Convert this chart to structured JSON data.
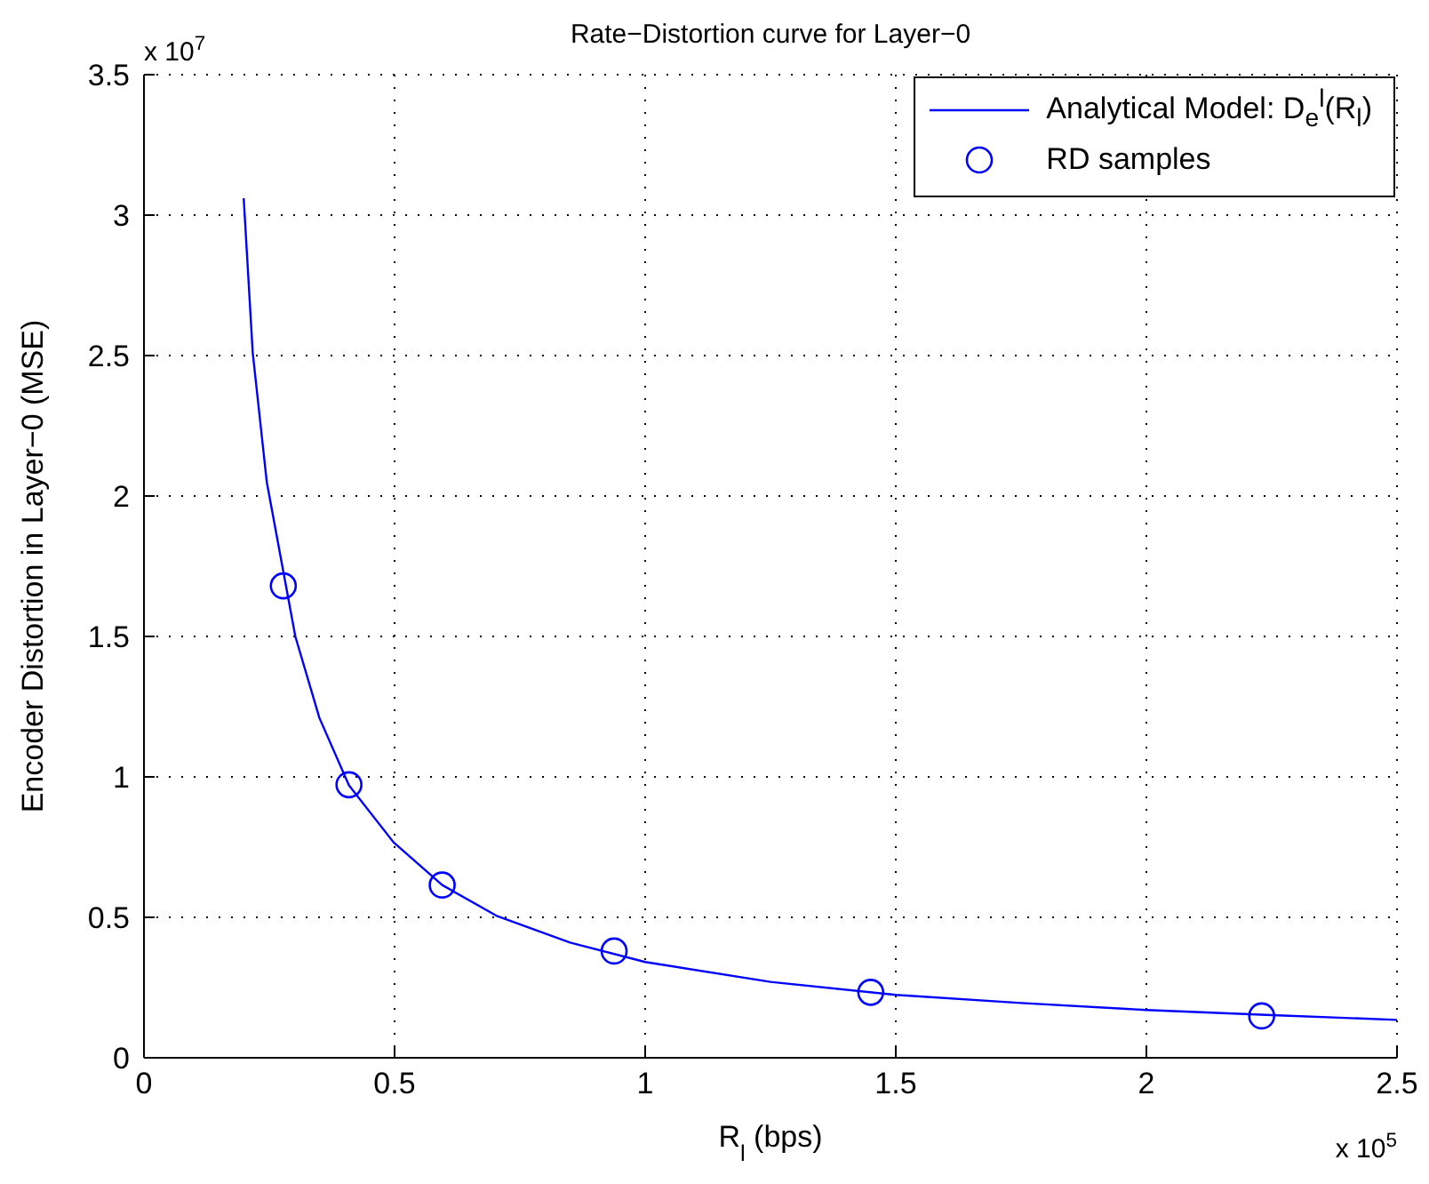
{
  "chart_data": {
    "type": "line",
    "title": "Rate−Distortion curve for Layer−0",
    "xlabel": "R$_{l}$ (bps)",
    "ylabel": "Encoder Distortion in Layer−0 (MSE)",
    "xlim": [
      0,
      2.5
    ],
    "xticks": [
      0,
      0.5,
      1,
      1.5,
      2,
      2.5
    ],
    "ylim": [
      0,
      3.5
    ],
    "yticks": [
      0,
      0.5,
      1,
      1.5,
      2,
      2.5,
      3,
      3.5
    ],
    "grid": true,
    "legend": "top right",
    "annotations": [
      "x 10$^{7}$",
      "x 10$^{5}$"
    ],
    "series": [
      {
        "name": "Analytical Model: D$_{e}$$^{l}$(R$_{l}$)",
        "color": "#0000ff",
        "marker": "none",
        "x": [
          0.199,
          0.217,
          0.245,
          0.302,
          0.35,
          0.409,
          0.498,
          0.595,
          0.705,
          0.85,
          1,
          1.25,
          1.5,
          1.75,
          2,
          2.25,
          2.5
        ],
        "values": [
          3.06,
          2.51,
          2.05,
          1.5,
          1.21,
          0.97,
          0.767,
          0.615,
          0.504,
          0.41,
          0.341,
          0.27,
          0.224,
          0.195,
          0.17,
          0.152,
          0.135
        ]
      },
      {
        "name": "RD samples",
        "type": "scatter",
        "color": "#0000ff",
        "marker": "circle",
        "x": [
          0.278,
          0.409,
          0.595,
          0.938,
          1.45,
          2.23
        ],
        "values": [
          1.68,
          0.972,
          0.615,
          0.38,
          0.233,
          0.149
        ]
      }
    ]
  }
}
